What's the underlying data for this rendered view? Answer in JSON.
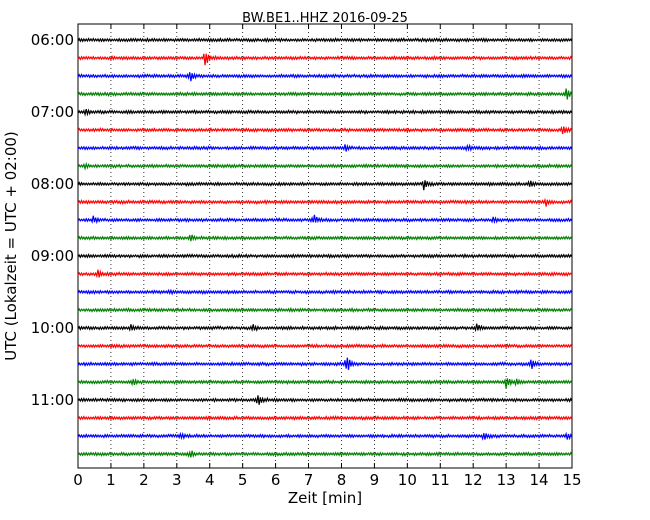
{
  "chart_data": {
    "type": "line",
    "title": "BW.BE1..HHZ 2016-09-25",
    "xlabel": "Zeit  [min]",
    "ylabel": "UTC (Lokalzeit = UTC + 02:00)",
    "xlim": [
      0,
      15
    ],
    "x_ticks": [
      "0",
      "1",
      "2",
      "3",
      "4",
      "5",
      "6",
      "7",
      "8",
      "9",
      "10",
      "11",
      "12",
      "13",
      "14",
      "15"
    ],
    "y_tick_labels": [
      "06:00",
      "07:00",
      "08:00",
      "09:00",
      "10:00",
      "11:00"
    ],
    "trace_interval_min": 15,
    "grid": "vertical dotted",
    "colors": [
      "#000000",
      "#ff0000",
      "#0000ff",
      "#008000"
    ],
    "traces": [
      {
        "start": "06:00",
        "events": []
      },
      {
        "start": "06:15",
        "events": [
          {
            "t": 3.85,
            "amp": 10
          }
        ]
      },
      {
        "start": "06:30",
        "events": [
          {
            "t": 3.4,
            "amp": 8
          }
        ]
      },
      {
        "start": "06:45",
        "events": [
          {
            "t": 14.8,
            "amp": 8
          }
        ]
      },
      {
        "start": "07:00",
        "events": [
          {
            "t": 0.2,
            "amp": 3
          }
        ]
      },
      {
        "start": "07:15",
        "events": [
          {
            "t": 14.7,
            "amp": 5
          }
        ]
      },
      {
        "start": "07:30",
        "events": [
          {
            "t": 8.1,
            "amp": 4
          },
          {
            "t": 11.8,
            "amp": 3
          }
        ]
      },
      {
        "start": "07:45",
        "events": [
          {
            "t": 0.2,
            "amp": 2
          }
        ]
      },
      {
        "start": "08:00",
        "events": [
          {
            "t": 10.5,
            "amp": 6
          },
          {
            "t": 13.7,
            "amp": 4
          }
        ]
      },
      {
        "start": "08:15",
        "events": [
          {
            "t": 14.2,
            "amp": 4
          }
        ]
      },
      {
        "start": "08:30",
        "events": [
          {
            "t": 0.45,
            "amp": 4
          },
          {
            "t": 7.15,
            "amp": 6
          },
          {
            "t": 12.6,
            "amp": 2
          }
        ]
      },
      {
        "start": "08:45",
        "events": [
          {
            "t": 3.4,
            "amp": 4
          }
        ]
      },
      {
        "start": "09:00",
        "events": []
      },
      {
        "start": "09:15",
        "events": [
          {
            "t": 0.6,
            "amp": 4
          }
        ]
      },
      {
        "start": "09:30",
        "events": [
          {
            "t": 2.8,
            "amp": 2
          }
        ]
      },
      {
        "start": "09:45",
        "events": []
      },
      {
        "start": "10:00",
        "events": [
          {
            "t": 1.6,
            "amp": 3
          },
          {
            "t": 5.3,
            "amp": 3
          },
          {
            "t": 12.1,
            "amp": 4
          }
        ]
      },
      {
        "start": "10:15",
        "events": []
      },
      {
        "start": "10:30",
        "events": [
          {
            "t": 8.15,
            "amp": 11
          },
          {
            "t": 13.75,
            "amp": 6
          }
        ]
      },
      {
        "start": "10:45",
        "events": [
          {
            "t": 1.65,
            "amp": 4
          },
          {
            "t": 13.0,
            "amp": 7
          },
          {
            "t": 13.3,
            "amp": 5
          }
        ]
      },
      {
        "start": "11:00",
        "events": [
          {
            "t": 5.45,
            "amp": 8
          }
        ]
      },
      {
        "start": "11:15",
        "events": []
      },
      {
        "start": "11:30",
        "events": [
          {
            "t": 3.1,
            "amp": 2
          },
          {
            "t": 12.3,
            "amp": 5
          },
          {
            "t": 14.85,
            "amp": 3
          }
        ]
      },
      {
        "start": "11:45",
        "events": [
          {
            "t": 3.4,
            "amp": 4
          }
        ]
      }
    ]
  }
}
